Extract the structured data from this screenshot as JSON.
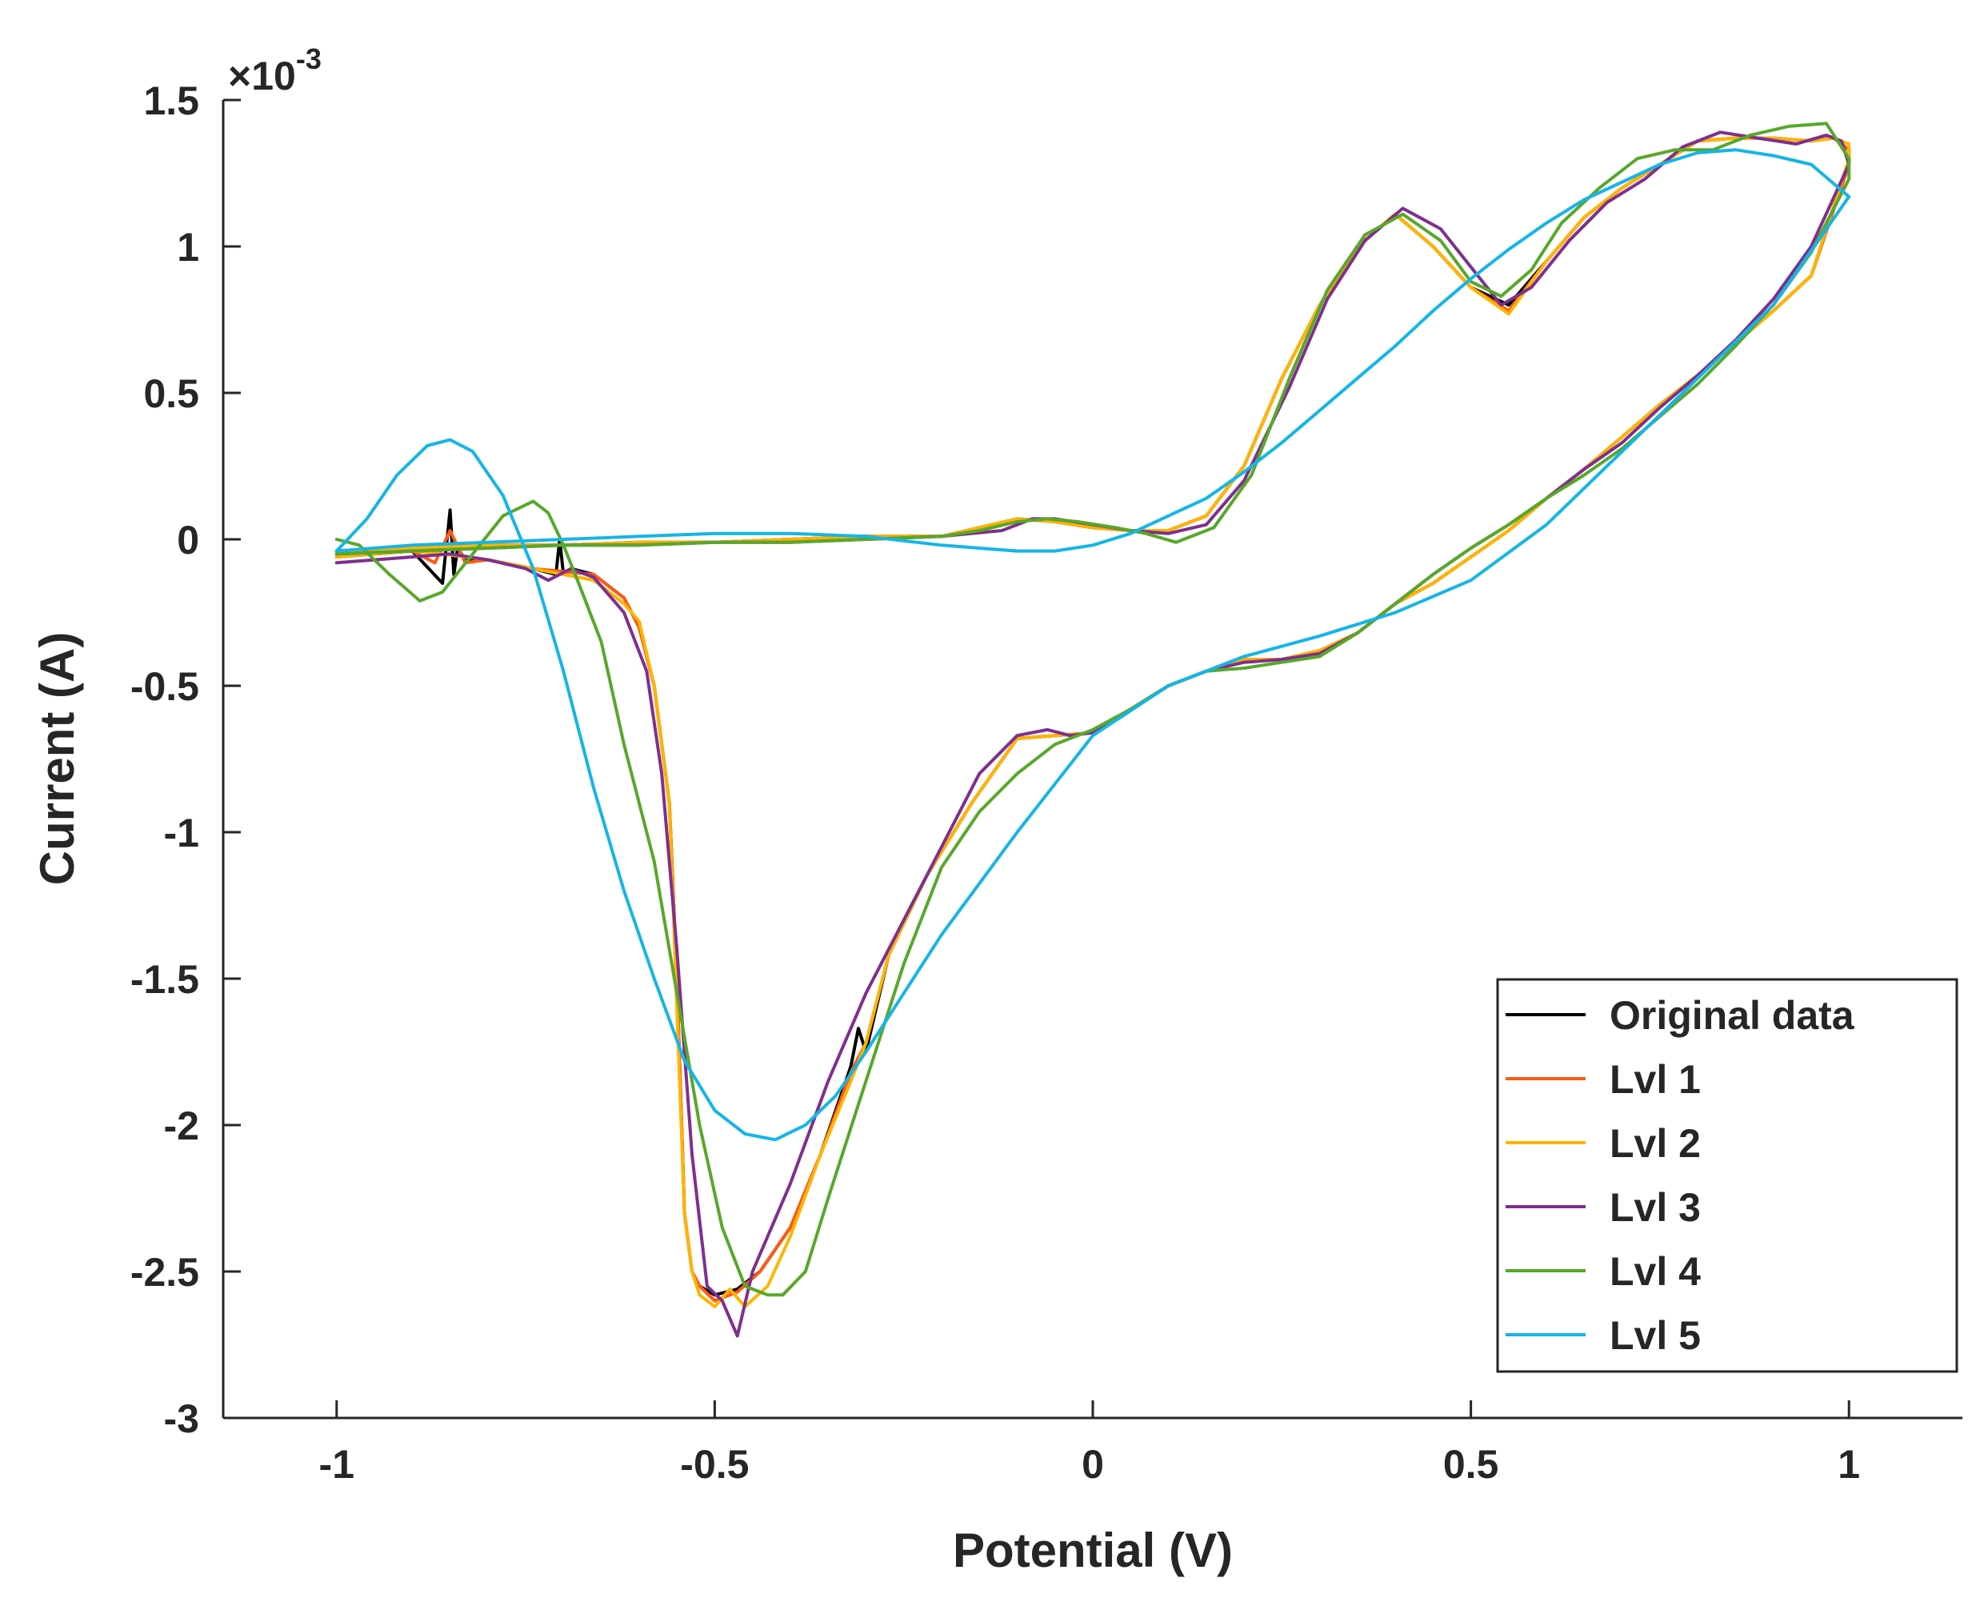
{
  "chart_data": {
    "type": "line",
    "title": "",
    "xlabel": "Potential (V)",
    "ylabel": "Current (A)",
    "y_exponent_label": {
      "prefix": "×10",
      "power": "-3"
    },
    "xlim": [
      -1.15,
      1.15
    ],
    "ylim": [
      -3,
      1.5
    ],
    "y_scale": 0.001,
    "xticks": [
      {
        "value": -1,
        "label": "-1"
      },
      {
        "value": -0.5,
        "label": "-0.5"
      },
      {
        "value": 0,
        "label": "0"
      },
      {
        "value": 0.5,
        "label": "0.5"
      },
      {
        "value": 1,
        "label": "1"
      }
    ],
    "yticks": [
      {
        "value": 1.5,
        "label": "1.5"
      },
      {
        "value": 1,
        "label": "1"
      },
      {
        "value": 0.5,
        "label": "0.5"
      },
      {
        "value": 0,
        "label": "0"
      },
      {
        "value": -0.5,
        "label": "-0.5"
      },
      {
        "value": -1,
        "label": "-1"
      },
      {
        "value": -1.5,
        "label": "-1.5"
      },
      {
        "value": -2,
        "label": "-2"
      },
      {
        "value": -2.5,
        "label": "-2.5"
      },
      {
        "value": -3,
        "label": "-3"
      }
    ],
    "grid": false,
    "legend_position": "bottom-right",
    "series": [
      {
        "name": "Original data",
        "color": "#000000",
        "x": [
          -1.0,
          -0.9,
          -0.86,
          -0.85,
          -0.845,
          -0.84,
          -0.83,
          -0.8,
          -0.74,
          -0.71,
          -0.705,
          -0.7,
          -0.69,
          -0.66,
          -0.62,
          -0.6,
          -0.58,
          -0.56,
          -0.55,
          -0.54,
          -0.53,
          -0.52,
          -0.5,
          -0.47,
          -0.44,
          -0.4,
          -0.36,
          -0.32,
          -0.31,
          -0.3,
          -0.27,
          -0.22,
          -0.16,
          -0.1,
          -0.05,
          0.0,
          0.05,
          0.1,
          0.15,
          0.2,
          0.25,
          0.3,
          0.35,
          0.4,
          0.45,
          0.5,
          0.55,
          0.6,
          0.65,
          0.7,
          0.75,
          0.8,
          0.85,
          0.9,
          0.95,
          1.0,
          1.0,
          0.98,
          0.95,
          0.9,
          0.85,
          0.8,
          0.75,
          0.7,
          0.65,
          0.6,
          0.55,
          0.5,
          0.45,
          0.4,
          0.35,
          0.3,
          0.25,
          0.2,
          0.15,
          0.1,
          0.05,
          0.0,
          -0.05,
          -0.1,
          -0.2,
          -0.3,
          -0.4,
          -0.5,
          -0.6,
          -0.7,
          -0.8,
          -0.9,
          -1.0
        ],
        "y": [
          -0.06,
          -0.04,
          -0.15,
          0.1,
          -0.12,
          -0.03,
          -0.07,
          -0.07,
          -0.1,
          -0.12,
          0.0,
          -0.12,
          -0.1,
          -0.12,
          -0.2,
          -0.3,
          -0.5,
          -0.9,
          -1.5,
          -2.3,
          -2.5,
          -2.55,
          -2.58,
          -2.56,
          -2.5,
          -2.35,
          -2.1,
          -1.8,
          -1.67,
          -1.75,
          -1.42,
          -1.15,
          -0.9,
          -0.68,
          -0.67,
          -0.66,
          -0.58,
          -0.5,
          -0.45,
          -0.41,
          -0.41,
          -0.38,
          -0.32,
          -0.22,
          -0.15,
          -0.06,
          0.03,
          0.14,
          0.24,
          0.35,
          0.46,
          0.56,
          0.67,
          0.78,
          0.9,
          1.28,
          1.33,
          1.37,
          1.36,
          1.37,
          1.37,
          1.36,
          1.28,
          1.2,
          1.1,
          0.95,
          0.8,
          0.86,
          1.0,
          1.11,
          1.0,
          0.8,
          0.55,
          0.25,
          0.08,
          0.03,
          0.03,
          0.04,
          0.06,
          0.07,
          0.01,
          0.01,
          0.0,
          -0.01,
          -0.01,
          -0.02,
          -0.02,
          -0.03,
          -0.04
        ]
      },
      {
        "name": "Lvl 1",
        "color": "#ff5a14",
        "x": [
          -1.0,
          -0.9,
          -0.87,
          -0.85,
          -0.83,
          -0.8,
          -0.74,
          -0.7,
          -0.66,
          -0.62,
          -0.6,
          -0.58,
          -0.56,
          -0.55,
          -0.54,
          -0.53,
          -0.52,
          -0.5,
          -0.47,
          -0.44,
          -0.4,
          -0.36,
          -0.32,
          -0.3,
          -0.27,
          -0.22,
          -0.16,
          -0.1,
          -0.05,
          0.0,
          0.05,
          0.1,
          0.15,
          0.2,
          0.25,
          0.3,
          0.35,
          0.4,
          0.45,
          0.5,
          0.55,
          0.6,
          0.65,
          0.7,
          0.75,
          0.8,
          0.85,
          0.9,
          0.95,
          1.0,
          1.0,
          0.98,
          0.95,
          0.9,
          0.85,
          0.8,
          0.75,
          0.7,
          0.65,
          0.6,
          0.55,
          0.5,
          0.45,
          0.4,
          0.35,
          0.3,
          0.25,
          0.2,
          0.15,
          0.1,
          0.05,
          0.0,
          -0.05,
          -0.1,
          -0.2,
          -0.3,
          -0.4,
          -0.5,
          -0.6,
          -0.7,
          -0.8,
          -0.9,
          -1.0
        ],
        "y": [
          -0.06,
          -0.04,
          -0.08,
          0.03,
          -0.08,
          -0.07,
          -0.1,
          -0.11,
          -0.12,
          -0.2,
          -0.3,
          -0.5,
          -0.9,
          -1.5,
          -2.3,
          -2.5,
          -2.55,
          -2.6,
          -2.57,
          -2.5,
          -2.35,
          -2.1,
          -1.82,
          -1.72,
          -1.42,
          -1.15,
          -0.9,
          -0.68,
          -0.67,
          -0.66,
          -0.58,
          -0.5,
          -0.45,
          -0.41,
          -0.41,
          -0.38,
          -0.32,
          -0.22,
          -0.15,
          -0.06,
          0.03,
          0.14,
          0.24,
          0.35,
          0.46,
          0.56,
          0.67,
          0.78,
          0.9,
          1.28,
          1.33,
          1.37,
          1.36,
          1.37,
          1.37,
          1.36,
          1.28,
          1.2,
          1.1,
          0.95,
          0.78,
          0.86,
          1.0,
          1.11,
          1.0,
          0.8,
          0.55,
          0.25,
          0.08,
          0.03,
          0.03,
          0.04,
          0.06,
          0.07,
          0.01,
          0.01,
          0.0,
          -0.01,
          -0.01,
          -0.02,
          -0.02,
          -0.03,
          -0.04
        ]
      },
      {
        "name": "Lvl 2",
        "color": "#ffb400",
        "x": [
          -1.0,
          -0.9,
          -0.86,
          -0.83,
          -0.8,
          -0.74,
          -0.7,
          -0.66,
          -0.62,
          -0.6,
          -0.58,
          -0.56,
          -0.55,
          -0.54,
          -0.53,
          -0.52,
          -0.5,
          -0.48,
          -0.46,
          -0.43,
          -0.4,
          -0.36,
          -0.32,
          -0.3,
          -0.27,
          -0.22,
          -0.16,
          -0.1,
          -0.05,
          0.0,
          0.05,
          0.1,
          0.15,
          0.2,
          0.25,
          0.3,
          0.35,
          0.4,
          0.45,
          0.5,
          0.55,
          0.6,
          0.65,
          0.7,
          0.75,
          0.8,
          0.85,
          0.9,
          0.95,
          1.0,
          1.0,
          0.98,
          0.95,
          0.9,
          0.85,
          0.8,
          0.75,
          0.7,
          0.65,
          0.6,
          0.55,
          0.5,
          0.45,
          0.4,
          0.35,
          0.3,
          0.25,
          0.2,
          0.15,
          0.1,
          0.05,
          0.0,
          -0.05,
          -0.1,
          -0.2,
          -0.3,
          -0.4,
          -0.5,
          -0.6,
          -0.7,
          -0.8,
          -0.9,
          -1.0
        ],
        "y": [
          -0.06,
          -0.04,
          -0.05,
          -0.06,
          -0.07,
          -0.1,
          -0.12,
          -0.14,
          -0.22,
          -0.28,
          -0.5,
          -0.9,
          -1.6,
          -2.3,
          -2.5,
          -2.58,
          -2.62,
          -2.56,
          -2.62,
          -2.55,
          -2.38,
          -2.1,
          -1.85,
          -1.72,
          -1.42,
          -1.15,
          -0.9,
          -0.68,
          -0.67,
          -0.66,
          -0.58,
          -0.5,
          -0.45,
          -0.41,
          -0.41,
          -0.38,
          -0.32,
          -0.22,
          -0.15,
          -0.06,
          0.03,
          0.14,
          0.24,
          0.35,
          0.46,
          0.56,
          0.67,
          0.78,
          0.9,
          1.3,
          1.35,
          1.37,
          1.36,
          1.37,
          1.37,
          1.36,
          1.28,
          1.2,
          1.1,
          0.95,
          0.77,
          0.86,
          1.0,
          1.11,
          1.0,
          0.8,
          0.55,
          0.25,
          0.08,
          0.03,
          0.03,
          0.04,
          0.06,
          0.07,
          0.01,
          0.01,
          0.0,
          -0.01,
          -0.01,
          -0.02,
          -0.02,
          -0.03,
          -0.04
        ]
      },
      {
        "name": "Lvl 3",
        "color": "#7e2f8e",
        "x": [
          -1.0,
          -0.9,
          -0.85,
          -0.8,
          -0.75,
          -0.72,
          -0.69,
          -0.66,
          -0.62,
          -0.59,
          -0.57,
          -0.55,
          -0.53,
          -0.51,
          -0.49,
          -0.47,
          -0.45,
          -0.43,
          -0.4,
          -0.35,
          -0.3,
          -0.25,
          -0.2,
          -0.15,
          -0.1,
          -0.06,
          -0.03,
          0.0,
          0.05,
          0.1,
          0.15,
          0.2,
          0.25,
          0.3,
          0.35,
          0.4,
          0.45,
          0.5,
          0.55,
          0.6,
          0.65,
          0.7,
          0.75,
          0.8,
          0.85,
          0.9,
          0.95,
          1.0,
          0.99,
          0.97,
          0.93,
          0.88,
          0.83,
          0.78,
          0.73,
          0.68,
          0.63,
          0.58,
          0.54,
          0.5,
          0.46,
          0.41,
          0.36,
          0.31,
          0.26,
          0.2,
          0.15,
          0.1,
          0.05,
          0.0,
          -0.05,
          -0.08,
          -0.12,
          -0.2,
          -0.3,
          -0.4,
          -0.5,
          -0.6,
          -0.7,
          -0.8,
          -0.9,
          -1.0
        ],
        "y": [
          -0.08,
          -0.06,
          -0.05,
          -0.07,
          -0.1,
          -0.14,
          -0.1,
          -0.13,
          -0.25,
          -0.45,
          -0.8,
          -1.4,
          -2.1,
          -2.55,
          -2.6,
          -2.72,
          -2.5,
          -2.38,
          -2.2,
          -1.85,
          -1.55,
          -1.3,
          -1.05,
          -0.8,
          -0.67,
          -0.65,
          -0.67,
          -0.66,
          -0.58,
          -0.5,
          -0.45,
          -0.42,
          -0.41,
          -0.39,
          -0.32,
          -0.22,
          -0.12,
          -0.03,
          0.05,
          0.14,
          0.24,
          0.33,
          0.45,
          0.56,
          0.68,
          0.82,
          1.0,
          1.28,
          1.36,
          1.38,
          1.35,
          1.37,
          1.39,
          1.34,
          1.23,
          1.15,
          1.02,
          0.86,
          0.8,
          0.93,
          1.06,
          1.13,
          1.02,
          0.82,
          0.52,
          0.2,
          0.05,
          0.02,
          0.03,
          0.05,
          0.07,
          0.07,
          0.03,
          0.01,
          0.0,
          -0.01,
          -0.01,
          -0.02,
          -0.02,
          -0.03,
          -0.04,
          -0.05
        ]
      },
      {
        "name": "Lvl 4",
        "color": "#57a82a",
        "x": [
          -1.0,
          -0.97,
          -0.93,
          -0.89,
          -0.86,
          -0.82,
          -0.78,
          -0.74,
          -0.72,
          -0.7,
          -0.68,
          -0.65,
          -0.62,
          -0.58,
          -0.55,
          -0.52,
          -0.49,
          -0.46,
          -0.43,
          -0.41,
          -0.38,
          -0.35,
          -0.3,
          -0.25,
          -0.2,
          -0.15,
          -0.1,
          -0.05,
          0.0,
          0.05,
          0.1,
          0.15,
          0.2,
          0.25,
          0.3,
          0.35,
          0.4,
          0.45,
          0.5,
          0.55,
          0.6,
          0.65,
          0.7,
          0.75,
          0.8,
          0.85,
          0.9,
          0.95,
          1.0,
          1.0,
          0.97,
          0.92,
          0.87,
          0.82,
          0.77,
          0.72,
          0.67,
          0.62,
          0.58,
          0.54,
          0.5,
          0.46,
          0.41,
          0.36,
          0.31,
          0.26,
          0.21,
          0.16,
          0.11,
          0.07,
          0.03,
          -0.02,
          -0.06,
          -0.1,
          -0.15,
          -0.2,
          -0.3,
          -0.4,
          -0.5,
          -0.6,
          -0.7,
          -0.8,
          -0.9,
          -1.0
        ],
        "y": [
          0.0,
          -0.02,
          -0.12,
          -0.21,
          -0.18,
          -0.05,
          0.08,
          0.13,
          0.09,
          -0.02,
          -0.15,
          -0.35,
          -0.7,
          -1.1,
          -1.55,
          -2.0,
          -2.35,
          -2.55,
          -2.58,
          -2.58,
          -2.5,
          -2.25,
          -1.85,
          -1.45,
          -1.12,
          -0.93,
          -0.8,
          -0.7,
          -0.65,
          -0.58,
          -0.5,
          -0.45,
          -0.44,
          -0.42,
          -0.4,
          -0.32,
          -0.22,
          -0.12,
          -0.03,
          0.05,
          0.14,
          0.22,
          0.31,
          0.42,
          0.53,
          0.66,
          0.8,
          0.98,
          1.23,
          1.3,
          1.42,
          1.41,
          1.38,
          1.33,
          1.33,
          1.3,
          1.2,
          1.08,
          0.92,
          0.83,
          0.88,
          1.02,
          1.11,
          1.04,
          0.85,
          0.55,
          0.22,
          0.04,
          -0.01,
          0.02,
          0.04,
          0.06,
          0.07,
          0.06,
          0.03,
          0.01,
          0.0,
          -0.01,
          -0.01,
          -0.02,
          -0.02,
          -0.03,
          -0.04,
          -0.05
        ]
      },
      {
        "name": "Lvl 5",
        "color": "#15b5e6",
        "x": [
          -1.0,
          -0.96,
          -0.92,
          -0.88,
          -0.85,
          -0.82,
          -0.78,
          -0.74,
          -0.7,
          -0.66,
          -0.62,
          -0.58,
          -0.54,
          -0.5,
          -0.46,
          -0.42,
          -0.38,
          -0.34,
          -0.3,
          -0.25,
          -0.2,
          -0.1,
          0.0,
          0.1,
          0.2,
          0.3,
          0.4,
          0.5,
          0.6,
          0.7,
          0.8,
          0.9,
          1.0,
          0.95,
          0.9,
          0.85,
          0.8,
          0.75,
          0.7,
          0.65,
          0.6,
          0.55,
          0.5,
          0.45,
          0.4,
          0.35,
          0.3,
          0.25,
          0.2,
          0.15,
          0.1,
          0.05,
          0.0,
          -0.05,
          -0.1,
          -0.15,
          -0.2,
          -0.3,
          -0.4,
          -0.5,
          -0.6,
          -0.7,
          -0.8,
          -0.9,
          -1.0
        ],
        "y": [
          -0.04,
          0.07,
          0.22,
          0.32,
          0.34,
          0.3,
          0.15,
          -0.1,
          -0.45,
          -0.85,
          -1.2,
          -1.5,
          -1.78,
          -1.95,
          -2.03,
          -2.05,
          -2.0,
          -1.9,
          -1.75,
          -1.55,
          -1.35,
          -1.0,
          -0.67,
          -0.5,
          -0.4,
          -0.33,
          -0.25,
          -0.14,
          0.05,
          0.3,
          0.55,
          0.8,
          1.17,
          1.28,
          1.31,
          1.33,
          1.32,
          1.28,
          1.22,
          1.16,
          1.08,
          0.99,
          0.89,
          0.78,
          0.66,
          0.55,
          0.44,
          0.33,
          0.23,
          0.14,
          0.08,
          0.02,
          -0.02,
          -0.04,
          -0.04,
          -0.03,
          -0.02,
          0.01,
          0.02,
          0.02,
          0.01,
          0.0,
          -0.01,
          -0.02,
          -0.04
        ]
      }
    ]
  }
}
